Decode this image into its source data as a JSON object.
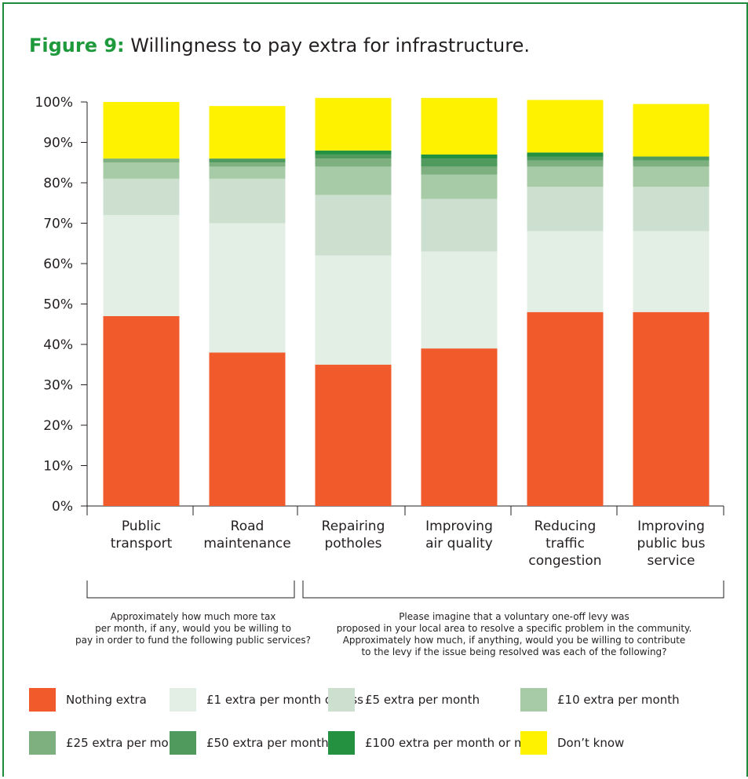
{
  "figure": {
    "label": "Figure 9:",
    "title": "Willingness to pay extra for infrastructure."
  },
  "chart_data": {
    "type": "bar",
    "stacked": true,
    "categories": [
      [
        "Public",
        "transport"
      ],
      [
        "Road",
        "maintenance"
      ],
      [
        "Repairing",
        "potholes"
      ],
      [
        "Improving",
        "air quality"
      ],
      [
        "Reducing",
        "traffic",
        "congestion"
      ],
      [
        "Improving",
        "public bus",
        "service"
      ]
    ],
    "y_ticks": [
      "0%",
      "10%",
      "20%",
      "30%",
      "40%",
      "50%",
      "60%",
      "70%",
      "80%",
      "90%",
      "100%"
    ],
    "ylim": [
      0,
      100
    ],
    "grid": false,
    "legend_position": "bottom",
    "series": [
      {
        "name": "Nothing extra",
        "color": "#f15a2b",
        "values": [
          47,
          38,
          35,
          39,
          48,
          48
        ]
      },
      {
        "name": "£1 extra per month or less",
        "color": "#e3efe4",
        "values": [
          25,
          32,
          27,
          24,
          20,
          20
        ]
      },
      {
        "name": "£5 extra per month",
        "color": "#cde0cf",
        "values": [
          9,
          11,
          15,
          13,
          11,
          11
        ]
      },
      {
        "name": "£10 extra per month",
        "color": "#a7cba6",
        "values": [
          4,
          3,
          7,
          6,
          5,
          5
        ]
      },
      {
        "name": "£25 extra per month",
        "color": "#7eb07f",
        "values": [
          1,
          1,
          2,
          2,
          1.5,
          1.5
        ]
      },
      {
        "name": "£50 extra per month",
        "color": "#4f9a5c",
        "values": [
          0,
          1,
          1,
          2,
          1,
          1
        ]
      },
      {
        "name": "£100 extra per month or more",
        "color": "#23913f",
        "values": [
          0,
          0,
          1,
          1,
          1,
          0
        ]
      },
      {
        "name": "Don’t know",
        "color": "#fff200",
        "values": [
          14,
          13,
          13,
          14,
          13,
          13
        ]
      }
    ],
    "group_notes": [
      {
        "lines": [
          "Approximately how much more tax",
          "per month, if any, would you be willing to",
          "pay in order to fund the following public services?"
        ]
      },
      {
        "lines": [
          "Please imagine that a voluntary one-off levy was",
          "proposed in your local area to resolve a specific problem in the community.",
          "Approximately how much, if anything, would you be willing to contribute",
          "to the levy if the issue being resolved was each of the following?"
        ]
      }
    ]
  }
}
